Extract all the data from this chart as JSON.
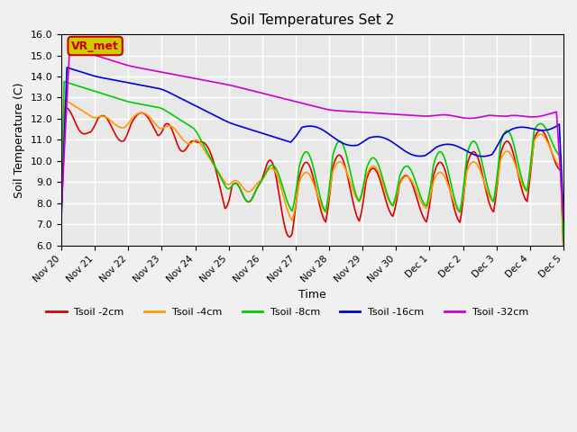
{
  "title": "Soil Temperatures Set 2",
  "xlabel": "Time",
  "ylabel": "Soil Temperature (C)",
  "ylim": [
    6.0,
    16.0
  ],
  "yticks": [
    6.0,
    7.0,
    8.0,
    9.0,
    10.0,
    11.0,
    12.0,
    13.0,
    14.0,
    15.0,
    16.0
  ],
  "legend_labels": [
    "Tsoil -2cm",
    "Tsoil -4cm",
    "Tsoil -8cm",
    "Tsoil -16cm",
    "Tsoil -32cm"
  ],
  "legend_colors": [
    "#dd0000",
    "#ff9900",
    "#00cc00",
    "#0000dd",
    "#cc00cc"
  ],
  "annotation_text": "VR_met",
  "annotation_bg": "#cccc00",
  "background_color": "#e8e8e8",
  "grid_color": "#ffffff",
  "num_points": 360
}
